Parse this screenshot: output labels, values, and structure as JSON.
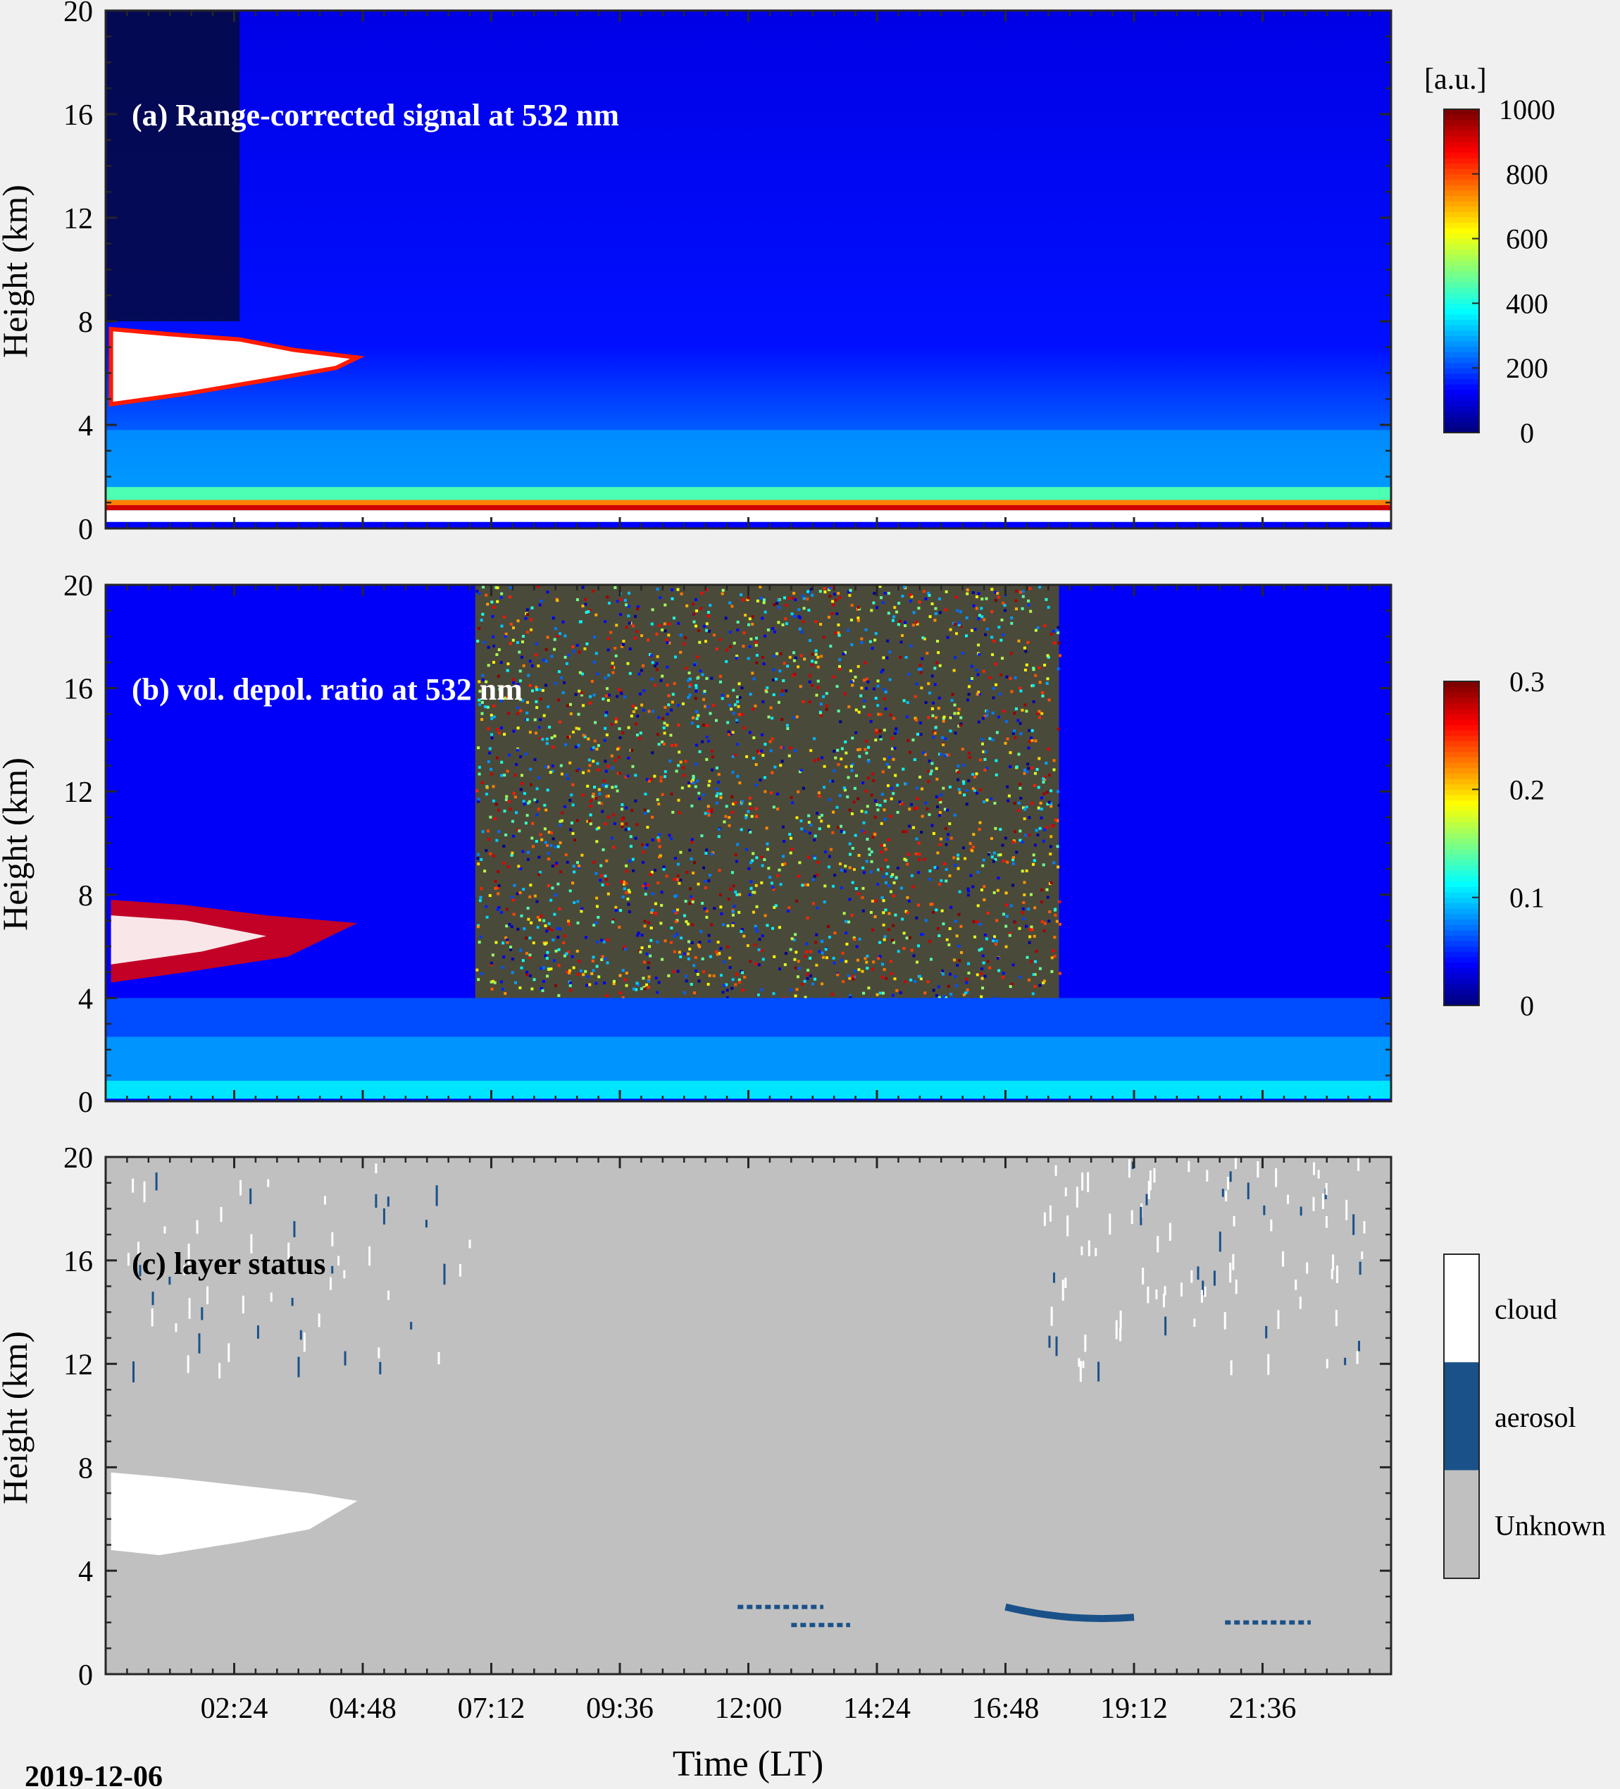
{
  "figure": {
    "date_label": "2019-12-06",
    "xlabel": "Time (LT)"
  },
  "chart_data": [
    {
      "type": "heatmap",
      "panel_label": "(a) Range-corrected signal at 532 nm",
      "ylabel": "Height (km)",
      "ylim": [
        0,
        20
      ],
      "yticks": [
        "0",
        "4",
        "8",
        "12",
        "16",
        "20"
      ],
      "xlim_hours": [
        0,
        24
      ],
      "colorbar": {
        "unit": "[a.u.]",
        "range": [
          0,
          1000
        ],
        "ticks": [
          "0",
          "200",
          "400",
          "600",
          "800",
          "1000"
        ],
        "colormap": "jet"
      },
      "features": {
        "cloud": {
          "start_h": 0.1,
          "end_h": 4.7,
          "bottom_km": 5.0,
          "top_km": 7.7
        },
        "boundary_layer": {
          "top_km": 1.0,
          "saturated_below_km": 0.6
        },
        "aerosol_layer_top_km": 3.8
      }
    },
    {
      "type": "heatmap",
      "panel_label": "(b) vol. depol. ratio at 532 nm",
      "ylabel": "Height (km)",
      "ylim": [
        0,
        20
      ],
      "yticks": [
        "0",
        "4",
        "8",
        "12",
        "16",
        "20"
      ],
      "xlim_hours": [
        0,
        24
      ],
      "colorbar": {
        "unit": "",
        "range": [
          0,
          0.3
        ],
        "ticks": [
          "0",
          "0.1",
          "0.2",
          "0.3"
        ],
        "colormap": "jet"
      },
      "features": {
        "noisy_daytime": {
          "start_h": 6.9,
          "end_h": 17.8,
          "bottom_km": 4.0
        },
        "cloud": {
          "start_h": 0.1,
          "end_h": 4.7,
          "bottom_km": 4.6,
          "top_km": 7.8
        }
      }
    },
    {
      "type": "heatmap",
      "panel_label": "(c) layer status",
      "ylabel": "Height (km)",
      "ylim": [
        0,
        20
      ],
      "yticks": [
        "0",
        "4",
        "8",
        "12",
        "16",
        "20"
      ],
      "xlim_hours": [
        0,
        24
      ],
      "categories": [
        {
          "label": "cloud",
          "color": "#ffffff"
        },
        {
          "label": "aerosol",
          "color": "#1a5189"
        },
        {
          "label": "Unknown",
          "color": "#c0c0c0"
        }
      ],
      "features": {
        "cloud": {
          "start_h": 0.1,
          "end_h": 4.7,
          "bottom_km": 4.6,
          "top_km": 7.8
        },
        "aerosol_arc": {
          "start_h": 16.8,
          "end_h": 19.2,
          "height_km": [
            2.6,
            2.2,
            2.2
          ]
        }
      }
    }
  ],
  "xticks": [
    {
      "h": 2.4,
      "label": "02:24"
    },
    {
      "h": 4.8,
      "label": "04:48"
    },
    {
      "h": 7.2,
      "label": "07:12"
    },
    {
      "h": 9.6,
      "label": "09:36"
    },
    {
      "h": 12.0,
      "label": "12:00"
    },
    {
      "h": 14.4,
      "label": "14:24"
    },
    {
      "h": 16.8,
      "label": "16:48"
    },
    {
      "h": 19.2,
      "label": "19:12"
    },
    {
      "h": 21.6,
      "label": "21:36"
    }
  ]
}
